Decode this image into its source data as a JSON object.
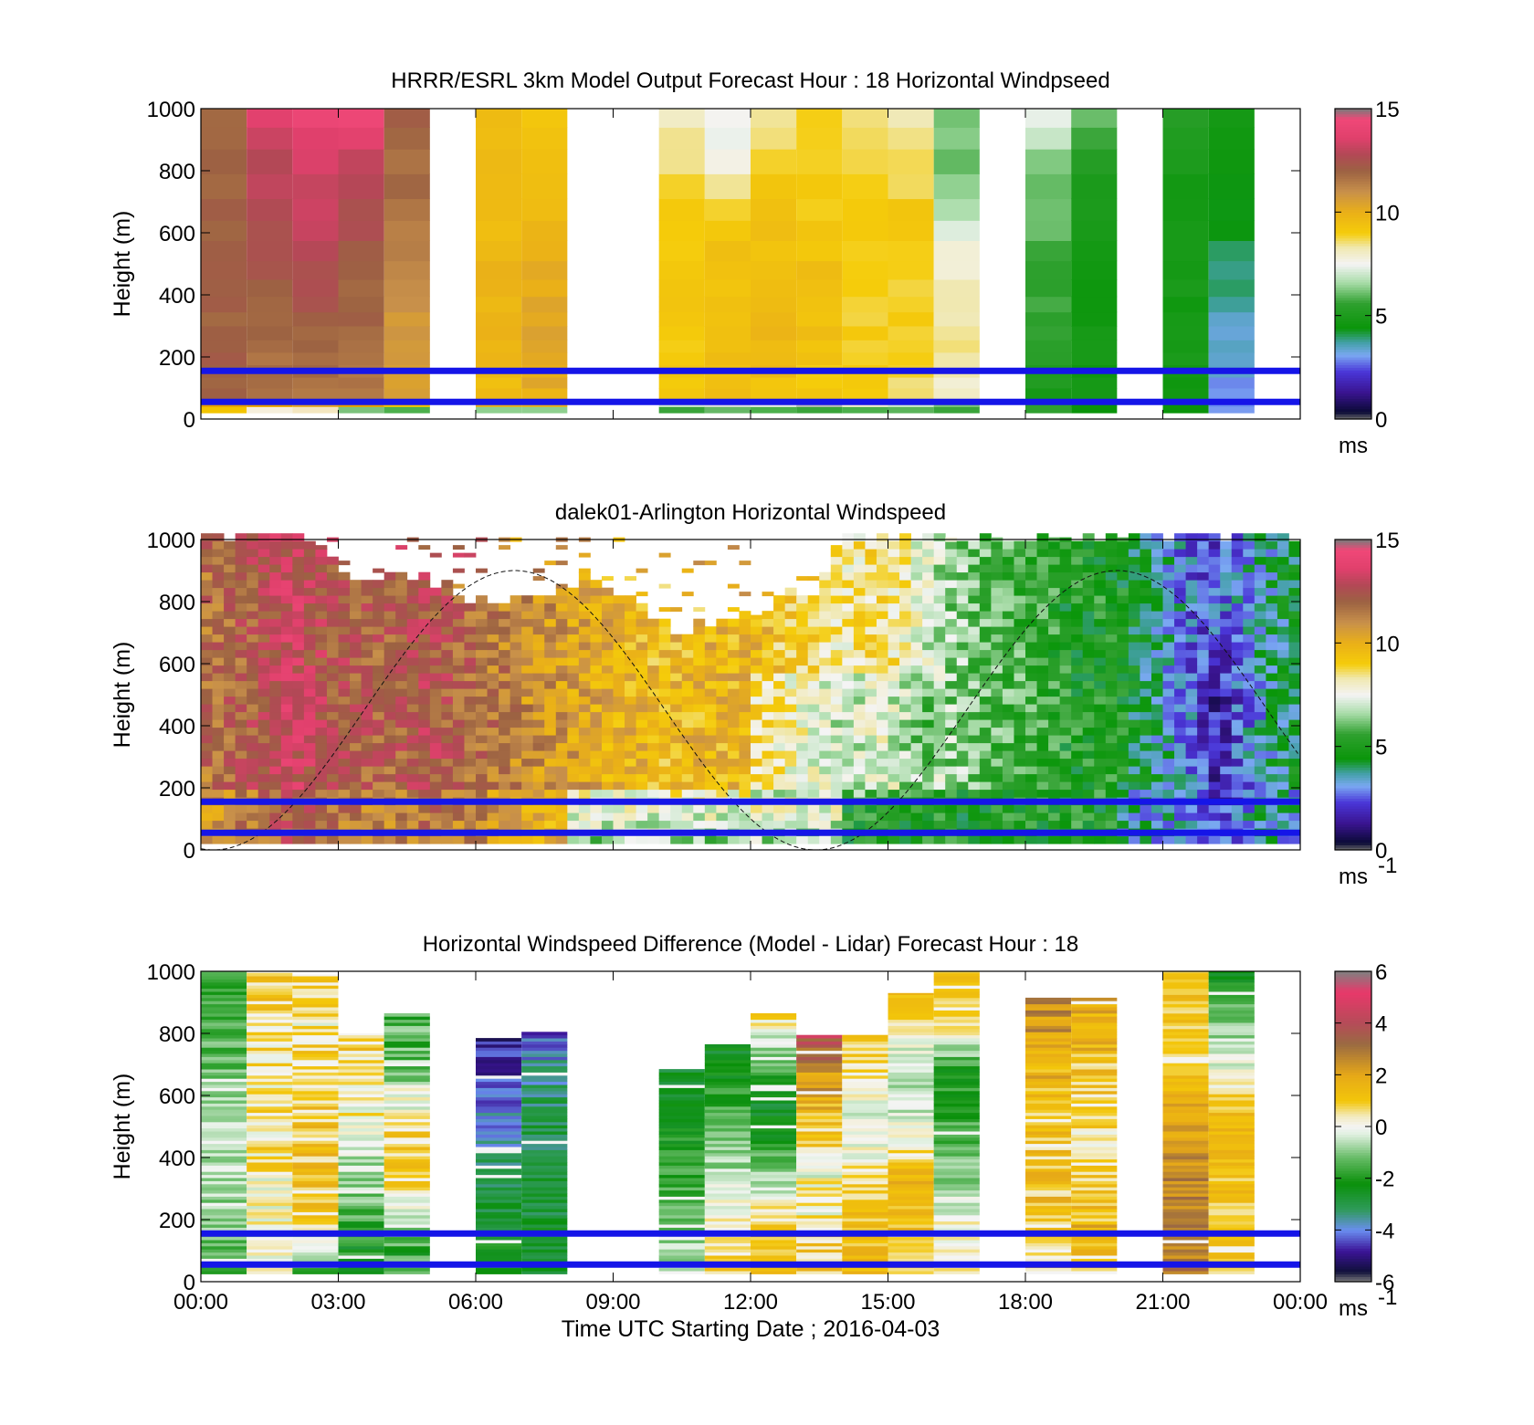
{
  "chart_data": [
    {
      "type": "heatmap",
      "title": "HRRR/ESRL 3km Model Output   Forecast Hour : 18 Horizontal Windpseed",
      "ylabel": "Height (m)",
      "ylim": [
        0,
        1000
      ],
      "yticks": [
        "0",
        "200",
        "400",
        "600",
        "800",
        "1000"
      ],
      "xlim_hours": [
        0,
        24
      ],
      "colorbar": {
        "range": [
          0,
          15
        ],
        "ticks": [
          "0",
          "5",
          "10",
          "15"
        ],
        "unit": "ms",
        "colormap": "windspeed"
      },
      "reference_lines_m": [
        55,
        155
      ],
      "line_color": "#1515e8",
      "columns": [
        {
          "t": 0.5,
          "low": [
            "#f2c400",
            "#e6a000"
          ],
          "v": [
            12.0,
            12.0,
            12.0,
            12.0,
            12.0,
            12.0,
            12.0
          ]
        },
        {
          "t": 1.5,
          "low": [
            "#f5efdc",
            "#e6a000"
          ],
          "v": [
            11.5,
            11.8,
            12.0,
            12.3,
            12.8,
            13.0,
            14.0
          ]
        },
        {
          "t": 2.5,
          "low": [
            "#f3e6c0",
            "#e3a52a"
          ],
          "v": [
            11.5,
            11.8,
            12.3,
            12.8,
            13.2,
            13.5,
            14.3
          ]
        },
        {
          "t": 3.5,
          "low": [
            "#7cc27c",
            "#e6a000"
          ],
          "v": [
            11.5,
            11.7,
            12.0,
            12.3,
            12.8,
            13.2,
            14.8
          ]
        },
        {
          "t": 4.5,
          "low": [
            "#4cb04c",
            "#f2c400"
          ],
          "v": [
            10.4,
            10.6,
            11.0,
            11.3,
            11.6,
            11.8,
            12.0
          ]
        },
        {
          "t": 6.5,
          "low": [
            "#8fd08f",
            "#e6b020"
          ],
          "v": [
            9.6,
            9.8,
            9.8,
            9.7,
            9.6,
            9.5,
            9.5
          ]
        },
        {
          "t": 7.5,
          "low": [
            "#8fd08f",
            "#e6b020"
          ],
          "v": [
            10.0,
            10.4,
            10.2,
            10.0,
            9.8,
            9.3,
            9.0
          ]
        },
        {
          "t": 10.5,
          "low": [
            "#3aa43a",
            "#cfe6cf"
          ],
          "v": [
            8.9,
            9.2,
            9.2,
            9.0,
            8.9,
            8.6,
            8.1
          ]
        },
        {
          "t": 11.5,
          "low": [
            "#66b866",
            "#dcdcdc"
          ],
          "v": [
            9.5,
            9.5,
            9.5,
            9.3,
            8.8,
            7.4,
            7.6
          ]
        },
        {
          "t": 12.5,
          "low": [
            "#4cb04c",
            "#e6e6e6"
          ],
          "v": [
            9.2,
            9.8,
            9.8,
            9.5,
            9.3,
            8.9,
            8.3
          ]
        },
        {
          "t": 13.5,
          "low": [
            "#3aa43a",
            "#b8b8b8"
          ],
          "v": [
            9.0,
            9.3,
            9.5,
            9.3,
            9.0,
            9.0,
            8.8
          ]
        },
        {
          "t": 14.5,
          "low": [
            "#4cb04c",
            "#f3ecd2"
          ],
          "v": [
            9.0,
            9.0,
            9.0,
            9.0,
            9.0,
            8.8,
            8.5
          ]
        },
        {
          "t": 15.5,
          "low": [
            "#5bb45b",
            "#cfe6cf"
          ],
          "v": [
            8.5,
            8.8,
            9.0,
            9.0,
            9.0,
            8.7,
            8.3
          ]
        },
        {
          "t": 16.5,
          "low": [
            "#3aa43a",
            "#7cc27c"
          ],
          "v": [
            7.8,
            8.3,
            8.2,
            7.8,
            6.5,
            6.2,
            6.0
          ]
        },
        {
          "t": 18.5,
          "low": [
            "#2f9f2f",
            "#2f9f2f"
          ],
          "v": [
            5.0,
            5.3,
            5.6,
            5.8,
            6.0,
            6.4,
            7.4
          ]
        },
        {
          "t": 19.5,
          "low": [
            "#0a940a",
            "#0a940a"
          ],
          "v": [
            4.7,
            4.7,
            4.7,
            4.8,
            5.0,
            5.4,
            6.0
          ]
        },
        {
          "t": 21.5,
          "low": [
            "#0a940a",
            "#0a940a"
          ],
          "v": [
            4.8,
            4.8,
            4.8,
            4.8,
            4.8,
            5.0,
            5.2
          ]
        },
        {
          "t": 22.5,
          "low": [
            "#7a9cf0",
            "#6a8ef0"
          ],
          "v": [
            3.0,
            3.3,
            3.7,
            4.0,
            4.3,
            4.5,
            4.8
          ]
        }
      ]
    },
    {
      "type": "heatmap",
      "title": "dalek01-Arlington  Horizontal Windspeed",
      "ylabel": "Height (m)",
      "ylim": [
        0,
        1000
      ],
      "yticks": [
        "0",
        "200",
        "400",
        "600",
        "800",
        "1000"
      ],
      "xlim_hours": [
        0,
        24
      ],
      "colorbar": {
        "range": [
          0,
          15
        ],
        "ticks": [
          "0",
          "5",
          "10",
          "15"
        ],
        "unit": "ms",
        "unit_exponent": "-1",
        "colormap": "windspeed"
      },
      "reference_lines_m": [
        55,
        155
      ],
      "line_color": "#1515e8",
      "dashed_curve": {
        "type": "sine",
        "center_m": 450,
        "amplitude_m": 450,
        "peak_hour": 20,
        "period_hours": 13.15
      }
    },
    {
      "type": "heatmap",
      "title": "Horizontal Windspeed Difference (Model - Lidar) Forecast Hour : 18",
      "xlabel": "Time UTC  Starting Date ; 2016-04-03",
      "ylabel": "Height (m)",
      "ylim": [
        0,
        1000
      ],
      "yticks": [
        "0",
        "200",
        "400",
        "600",
        "800",
        "1000"
      ],
      "xlim_hours": [
        0,
        24
      ],
      "xticks": [
        "00:00",
        "03:00",
        "06:00",
        "09:00",
        "12:00",
        "15:00",
        "18:00",
        "21:00",
        "00:00"
      ],
      "colorbar": {
        "range": [
          -6,
          6
        ],
        "ticks": [
          "-6",
          "-4",
          "-2",
          "0",
          "2",
          "4",
          "6"
        ],
        "unit": "ms",
        "unit_exponent": "-1",
        "colormap": "difference"
      },
      "reference_lines_m": [
        55,
        155
      ],
      "line_color": "#1515e8",
      "columns": [
        {
          "t": 0.5,
          "top": 1000,
          "v": [
            -1.5,
            -1.0,
            -0.5,
            -0.6,
            -1.3,
            -1.5,
            -1.6
          ],
          "hatch": 2
        },
        {
          "t": 1.5,
          "top": 995,
          "v": [
            -0.3,
            0.0,
            0.5,
            0.5,
            0.5,
            0.8,
            1.0
          ],
          "hatch": 3
        },
        {
          "t": 2.5,
          "top": 990,
          "v": [
            -1.8,
            0.6,
            1.2,
            1.0,
            0.9,
            0.4,
            0.7
          ],
          "hatch": 3
        },
        {
          "t": 3.5,
          "top": 800,
          "v": [
            -2.8,
            -1.6,
            -0.4,
            0.0,
            0.5,
            0.9
          ],
          "hatch": 3
        },
        {
          "t": 4.5,
          "top": 865,
          "v": [
            -2.0,
            -1.0,
            1.0,
            0.8,
            -0.2,
            -1.2,
            -1.6
          ],
          "hatch": 3
        },
        {
          "t": 6.5,
          "top": 785,
          "v": [
            -1.8,
            -2.4,
            -3.0,
            -3.4,
            -4.0,
            -4.5,
            -5.0
          ],
          "hatch": 2
        },
        {
          "t": 7.5,
          "top": 805,
          "v": [
            -2.5,
            -2.6,
            -2.8,
            -3.0,
            -3.0,
            -3.6,
            -4.5
          ],
          "hatch": 2
        },
        {
          "t": 10.5,
          "top": 685,
          "v": [
            -0.5,
            -1.0,
            -1.5,
            -2.0,
            -2.4,
            -2.8
          ],
          "hatch": 2
        },
        {
          "t": 11.5,
          "top": 765,
          "v": [
            1.0,
            0.5,
            -0.5,
            -1.3,
            -2.0,
            -2.5
          ],
          "hatch": 2
        },
        {
          "t": 12.5,
          "top": 865,
          "v": [
            1.2,
            1.0,
            -0.5,
            -2.0,
            -2.6,
            -1.0,
            0.8
          ],
          "hatch": 2
        },
        {
          "t": 13.5,
          "top": 795,
          "v": [
            1.0,
            0.8,
            0.0,
            0.5,
            1.5,
            2.5,
            4.0
          ],
          "hatch": 3
        },
        {
          "t": 14.5,
          "top": 795,
          "v": [
            1.3,
            1.2,
            1.0,
            0.0,
            -0.5,
            0.5,
            1.0
          ],
          "hatch": 2
        },
        {
          "t": 15.5,
          "top": 930,
          "v": [
            1.0,
            1.2,
            1.5,
            0.0,
            -0.8,
            0.0,
            1.5
          ],
          "hatch": 2
        },
        {
          "t": 16.5,
          "top": 1000,
          "v": [
            0.5,
            0.0,
            -1.0,
            -1.6,
            -2.0,
            1.0,
            1.2
          ],
          "hatch": 2
        },
        {
          "t": 18.5,
          "top": 915,
          "v": [
            0.8,
            1.2,
            1.2,
            1.0,
            1.5,
            2.0,
            2.6
          ],
          "hatch": 3
        },
        {
          "t": 19.5,
          "top": 915,
          "v": [
            1.2,
            1.5,
            1.0,
            0.5,
            1.0,
            1.5,
            2.0
          ],
          "hatch": 3
        },
        {
          "t": 21.5,
          "top": 1000,
          "v": [
            2.8,
            2.8,
            2.6,
            2.0,
            1.2,
            1.0,
            1.3
          ],
          "hatch": 2
        },
        {
          "t": 22.5,
          "top": 1000,
          "v": [
            1.0,
            1.0,
            1.2,
            1.5,
            0.0,
            -1.0,
            -2.5
          ],
          "hatch": 2
        }
      ]
    }
  ]
}
